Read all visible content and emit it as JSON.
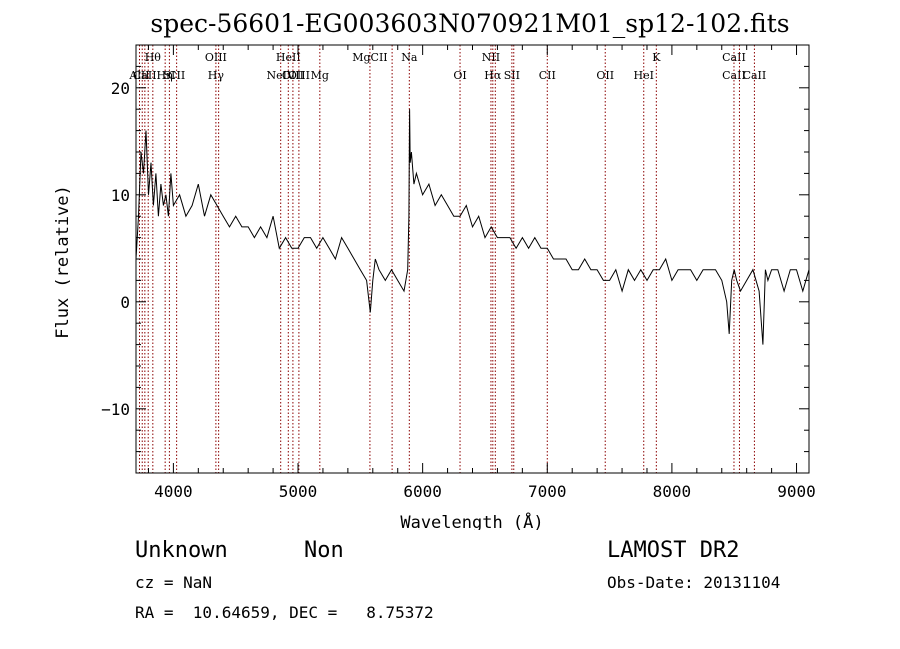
{
  "chart_data": {
    "type": "line",
    "title": "spec-56601-EG003603N070921M01_sp12-102.fits",
    "xlabel": "Wavelength (Å)",
    "ylabel": "Flux (relative)",
    "xlim": [
      3700,
      9100
    ],
    "ylim": [
      -16,
      24
    ],
    "xticks": [
      4000,
      5000,
      6000,
      7000,
      8000,
      9000
    ],
    "yticks": [
      -10,
      0,
      10,
      20
    ],
    "tick_labels_x": [
      "4000",
      "5000",
      "6000",
      "7000",
      "8000",
      "9000"
    ],
    "tick_labels_y": [
      "−10",
      "0",
      "10",
      "20"
    ],
    "grid": false,
    "line_color": "#000000",
    "marker_color": "#8b0000",
    "series": [
      {
        "x": [
          3700,
          3720,
          3740,
          3760,
          3780,
          3800,
          3820,
          3840,
          3860,
          3880,
          3900,
          3920,
          3940,
          3960,
          3980,
          4000,
          4050,
          4100,
          4150,
          4200,
          4250,
          4300,
          4350,
          4400,
          4450,
          4500,
          4550,
          4600,
          4650,
          4700,
          4750,
          4800,
          4850,
          4900,
          4950,
          5000,
          5050,
          5100,
          5150,
          5200,
          5250,
          5300,
          5350,
          5400,
          5450,
          5500,
          5550,
          5580,
          5600,
          5620,
          5650,
          5700,
          5750,
          5800,
          5850,
          5880,
          5890,
          5895,
          5900,
          5910,
          5930,
          5950,
          6000,
          6050,
          6100,
          6150,
          6200,
          6250,
          6300,
          6350,
          6400,
          6450,
          6500,
          6550,
          6600,
          6650,
          6700,
          6750,
          6800,
          6850,
          6900,
          6950,
          7000,
          7050,
          7100,
          7150,
          7200,
          7250,
          7300,
          7350,
          7400,
          7450,
          7500,
          7550,
          7600,
          7650,
          7700,
          7750,
          7800,
          7850,
          7900,
          7950,
          8000,
          8050,
          8100,
          8150,
          8200,
          8250,
          8300,
          8350,
          8400,
          8440,
          8460,
          8480,
          8500,
          8520,
          8550,
          8600,
          8650,
          8700,
          8730,
          8750,
          8770,
          8800,
          8850,
          8900,
          8950,
          9000,
          9050,
          9100
        ],
        "y": [
          4,
          8,
          14,
          12,
          16,
          10,
          13,
          9,
          12,
          8,
          11,
          9,
          10,
          8,
          12,
          9,
          10,
          8,
          9,
          11,
          8,
          10,
          9,
          8,
          7,
          8,
          7,
          7,
          6,
          7,
          6,
          8,
          5,
          6,
          5,
          5,
          6,
          6,
          5,
          6,
          5,
          4,
          6,
          5,
          4,
          3,
          2,
          -1,
          2,
          4,
          3,
          2,
          3,
          2,
          1,
          3,
          8,
          18,
          13,
          14,
          11,
          12,
          10,
          11,
          9,
          10,
          9,
          8,
          8,
          9,
          7,
          8,
          6,
          7,
          6,
          6,
          6,
          5,
          6,
          5,
          6,
          5,
          5,
          4,
          4,
          4,
          3,
          3,
          4,
          3,
          3,
          2,
          2,
          3,
          1,
          3,
          2,
          3,
          2,
          3,
          3,
          4,
          2,
          3,
          3,
          3,
          2,
          3,
          3,
          3,
          2,
          0,
          -3,
          2,
          3,
          2,
          1,
          2,
          3,
          1,
          -4,
          3,
          2,
          3,
          3,
          1,
          3,
          3,
          1,
          3
        ]
      }
    ],
    "line_markers": [
      {
        "wl": 3728,
        "top": "",
        "bottom": "AlII"
      },
      {
        "wl": 3750,
        "top": "",
        "bottom": ""
      },
      {
        "wl": 3771,
        "top": "",
        "bottom": ""
      },
      {
        "wl": 3798,
        "top": "",
        "bottom": ""
      },
      {
        "wl": 3835,
        "top": "Hθ",
        "bottom": "CaIIHη"
      },
      {
        "wl": 3934,
        "top": "",
        "bottom": ""
      },
      {
        "wl": 3968,
        "top": "",
        "bottom": "SI"
      },
      {
        "wl": 4026,
        "top": "",
        "bottom": "CII"
      },
      {
        "wl": 4341,
        "top": "OIII",
        "bottom": "Hγ"
      },
      {
        "wl": 4363,
        "top": "",
        "bottom": ""
      },
      {
        "wl": 4861,
        "top": "",
        "bottom": "NeIV"
      },
      {
        "wl": 4922,
        "top": "HeII",
        "bottom": ""
      },
      {
        "wl": 4959,
        "top": "",
        "bottom": "OIII"
      },
      {
        "wl": 5007,
        "top": "",
        "bottom": "OIII"
      },
      {
        "wl": 5175,
        "top": "",
        "bottom": "Mg"
      },
      {
        "wl": 5577,
        "top": "MgCII",
        "bottom": ""
      },
      {
        "wl": 5755,
        "top": "",
        "bottom": ""
      },
      {
        "wl": 5893,
        "top": "Na",
        "bottom": ""
      },
      {
        "wl": 6300,
        "top": "",
        "bottom": "OI"
      },
      {
        "wl": 6548,
        "top": "NII",
        "bottom": ""
      },
      {
        "wl": 6563,
        "top": "",
        "bottom": "Hα"
      },
      {
        "wl": 6583,
        "top": "",
        "bottom": ""
      },
      {
        "wl": 6716,
        "top": "",
        "bottom": "SII"
      },
      {
        "wl": 6731,
        "top": "",
        "bottom": ""
      },
      {
        "wl": 7000,
        "top": "",
        "bottom": "CII"
      },
      {
        "wl": 7465,
        "top": "",
        "bottom": "OII"
      },
      {
        "wl": 7774,
        "top": "",
        "bottom": "HeI"
      },
      {
        "wl": 7875,
        "top": "K",
        "bottom": ""
      },
      {
        "wl": 8498,
        "top": "CaII",
        "bottom": "CaII"
      },
      {
        "wl": 8542,
        "top": "",
        "bottom": ""
      },
      {
        "wl": 8662,
        "top": "",
        "bottom": "CaII"
      }
    ]
  },
  "info": {
    "class": "Unknown",
    "subclass": "Non",
    "survey": "LAMOST DR2",
    "cz": "cz = NaN",
    "obs_date": "Obs-Date: 20131104",
    "radec": "RA =  10.64659, DEC =   8.75372"
  }
}
